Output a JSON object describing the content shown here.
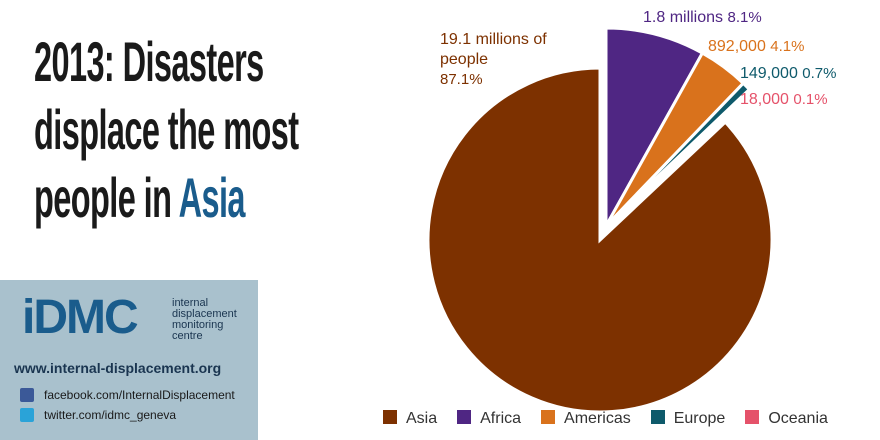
{
  "chart_data": {
    "type": "pie",
    "title": "2013: Disasters displace the most people in",
    "title_highlight": "Asia",
    "categories": [
      "Asia",
      "Africa",
      "Americas",
      "Europe",
      "Oceania"
    ],
    "values": [
      87.1,
      8.1,
      4.1,
      0.7,
      0.1
    ],
    "value_labels": [
      "87.1%",
      "8.1%",
      "4.1%",
      "0.7%",
      "0.1%"
    ],
    "amount_labels": [
      "19.1 millions of people",
      "1.8 millions",
      "892,000",
      "149,000",
      "18,000"
    ],
    "colors": [
      "#7d3100",
      "#4f2683",
      "#d9721c",
      "#0e5a6b",
      "#e5526a"
    ],
    "legend": "bottom"
  },
  "branding": {
    "logo": "iDMC",
    "logo_caption": "internal displacement monitoring centre",
    "website": "www.internal-displacement.org",
    "facebook": "facebook.com/InternalDisplacement",
    "twitter": "twitter.com/idmc_geneva"
  }
}
